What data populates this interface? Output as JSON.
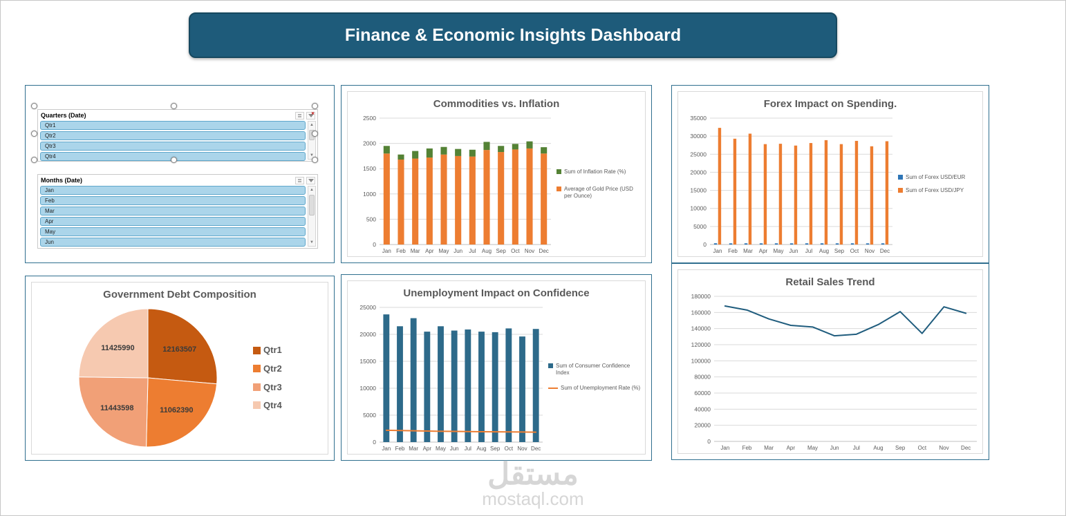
{
  "header": {
    "title": "Finance & Economic Insights Dashboard"
  },
  "watermark": {
    "arabic": "مستقل",
    "latin": "mostaql.com"
  },
  "icons": {
    "scroll_up": "▲",
    "scroll_down": "▼",
    "multiselect": "≣",
    "clear_filter_x": "✕"
  },
  "slicers": {
    "quarters": {
      "title": "Quarters (Date)",
      "items": [
        "Qtr1",
        "Qtr2",
        "Qtr3",
        "Qtr4"
      ]
    },
    "months": {
      "title": "Months (Date)",
      "items": [
        "Jan",
        "Feb",
        "Mar",
        "Apr",
        "May",
        "Jun"
      ]
    }
  },
  "chart_data": [
    {
      "id": "commodities",
      "type": "bar",
      "stacked": true,
      "title": "Commodities vs. Inflation",
      "categories": [
        "Jan",
        "Feb",
        "Mar",
        "Apr",
        "May",
        "Jun",
        "Jul",
        "Aug",
        "Sep",
        "Oct",
        "Nov",
        "Dec"
      ],
      "series": [
        {
          "name": "Average of Gold Price (USD per Ounce)",
          "kind": "bar",
          "color": "#ED7D31",
          "values": [
            1800,
            1680,
            1700,
            1720,
            1780,
            1750,
            1740,
            1870,
            1830,
            1880,
            1900,
            1800
          ]
        },
        {
          "name": "Sum of Inflation Rate (%)",
          "kind": "bar",
          "color": "#548235",
          "values": [
            150,
            100,
            150,
            180,
            150,
            140,
            135,
            160,
            120,
            110,
            140,
            125
          ]
        }
      ],
      "ylim": [
        0,
        2500
      ],
      "ytick": 500,
      "grid": true,
      "legend_position": "right",
      "legend": [
        {
          "label": "Sum of Inflation Rate (%)",
          "color": "#548235",
          "marker": "square"
        },
        {
          "label": "Average of Gold Price (USD per Ounce)",
          "color": "#ED7D31",
          "marker": "square"
        }
      ]
    },
    {
      "id": "forex",
      "type": "bar",
      "stacked": false,
      "title": "Forex Impact on Spending.",
      "categories": [
        "Jan",
        "Feb",
        "Mar",
        "Apr",
        "May",
        "Jun",
        "Jul",
        "Aug",
        "Sep",
        "Oct",
        "Nov",
        "Dec"
      ],
      "series": [
        {
          "name": "Sum of Forex USD/EUR",
          "kind": "bar",
          "color": "#2E75B6",
          "values": [
            350,
            330,
            340,
            330,
            335,
            330,
            335,
            340,
            330,
            340,
            325,
            335
          ]
        },
        {
          "name": "Sum of Forex USD/JPY",
          "kind": "bar",
          "color": "#ED7D31",
          "values": [
            32300,
            29300,
            30700,
            27800,
            27900,
            27400,
            28100,
            28900,
            27800,
            28700,
            27200,
            28600
          ]
        }
      ],
      "ylim": [
        0,
        35000
      ],
      "ytick": 5000,
      "grid": true,
      "legend_position": "right",
      "legend": [
        {
          "label": "Sum of Forex USD/EUR",
          "color": "#2E75B6",
          "marker": "square"
        },
        {
          "label": "Sum of Forex USD/JPY",
          "color": "#ED7D31",
          "marker": "square"
        }
      ]
    },
    {
      "id": "debt",
      "type": "pie",
      "title": "Government Debt Composition",
      "labels": [
        "Qtr1",
        "Qtr2",
        "Qtr3",
        "Qtr4"
      ],
      "values": [
        12163507,
        11062390,
        11443598,
        11425990
      ],
      "colors": [
        "#C55A11",
        "#ED7D31",
        "#F1A077",
        "#F6C9B0"
      ],
      "legend_position": "right",
      "legend": [
        {
          "label": "Qtr1",
          "color": "#C55A11",
          "marker": "square"
        },
        {
          "label": "Qtr2",
          "color": "#ED7D31",
          "marker": "square"
        },
        {
          "label": "Qtr3",
          "color": "#F1A077",
          "marker": "square"
        },
        {
          "label": "Qtr4",
          "color": "#F6C9B0",
          "marker": "square"
        }
      ]
    },
    {
      "id": "unemployment",
      "type": "bar",
      "stacked": false,
      "title": "Unemployment Impact on Confidence",
      "categories": [
        "Jan",
        "Feb",
        "Mar",
        "Apr",
        "May",
        "Jun",
        "Jul",
        "Aug",
        "Sep",
        "Oct",
        "Nov",
        "Dec"
      ],
      "series": [
        {
          "name": "Sum of Consumer Confidence Index",
          "kind": "bar",
          "color": "#2D6A8A",
          "values": [
            23700,
            21500,
            23000,
            20500,
            21500,
            20700,
            20900,
            20500,
            20400,
            21100,
            19600,
            21000
          ]
        },
        {
          "name": "Sum of Unemployment Rate (%)",
          "kind": "line",
          "color": "#ED7D31",
          "values": [
            2200,
            2150,
            2100,
            2050,
            2000,
            1980,
            1950,
            1930,
            1910,
            1890,
            1870,
            1850
          ]
        }
      ],
      "ylim": [
        0,
        25000
      ],
      "ytick": 5000,
      "grid": true,
      "legend_position": "right",
      "legend": [
        {
          "label": "Sum of Consumer Confidence Index",
          "color": "#2D6A8A",
          "marker": "square"
        },
        {
          "label": "Sum of Unemployment Rate (%)",
          "color": "#ED7D31",
          "marker": "line"
        }
      ]
    },
    {
      "id": "retail",
      "type": "line",
      "title": "Retail Sales Trend",
      "categories": [
        "Jan",
        "Feb",
        "Mar",
        "Apr",
        "May",
        "Jun",
        "Jul",
        "Aug",
        "Sep",
        "Oct",
        "Nov",
        "Dec"
      ],
      "series": [
        {
          "name": "Retail Sales",
          "kind": "line",
          "color": "#1F5C7D",
          "values": [
            168000,
            163000,
            152000,
            144000,
            142000,
            131000,
            133000,
            145000,
            161000,
            134000,
            167000,
            159000
          ]
        }
      ],
      "ylim": [
        0,
        180000
      ],
      "ytick": 20000,
      "grid": true,
      "legend_position": "none"
    }
  ]
}
